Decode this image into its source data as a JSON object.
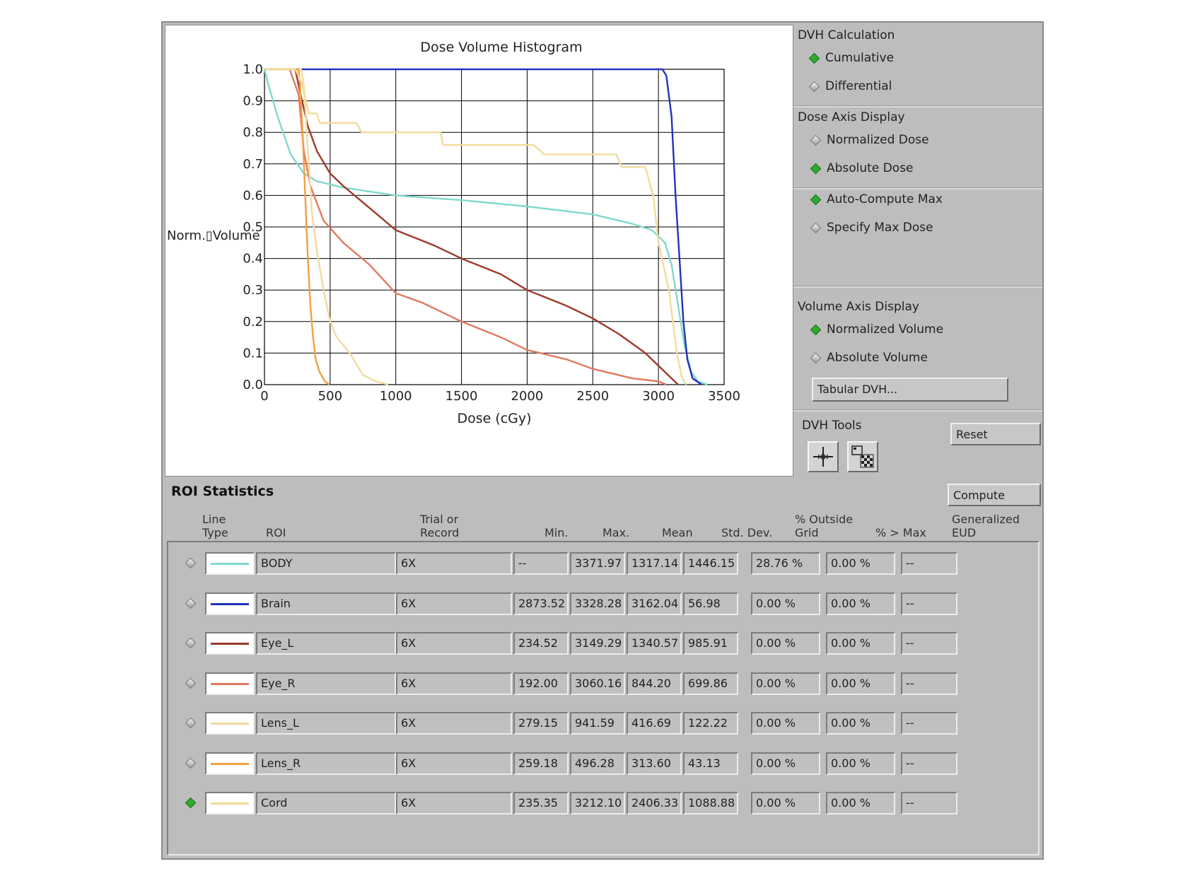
{
  "chart_data": {
    "type": "line",
    "title": "Dose Volume Histogram",
    "xlabel": "Dose (cGy)",
    "ylabel": "Norm.▯Volume",
    "xlim": [
      0,
      3500
    ],
    "ylim": [
      0,
      1.0
    ],
    "xticks": [
      "0",
      "500",
      "1000",
      "1500",
      "2000",
      "2500",
      "3000",
      "3500"
    ],
    "yticks": [
      "0.0",
      "0.1",
      "0.2",
      "0.3",
      "0.4",
      "0.5",
      "0.6",
      "0.7",
      "0.8",
      "0.9",
      "1.0"
    ],
    "grid": true,
    "series": [
      {
        "name": "BODY",
        "color": "#7fd9cc",
        "points": [
          [
            0,
            1.0
          ],
          [
            30,
            0.95
          ],
          [
            100,
            0.85
          ],
          [
            200,
            0.73
          ],
          [
            300,
            0.67
          ],
          [
            400,
            0.645
          ],
          [
            600,
            0.625
          ],
          [
            1000,
            0.6
          ],
          [
            1500,
            0.585
          ],
          [
            2000,
            0.565
          ],
          [
            2500,
            0.54
          ],
          [
            2800,
            0.51
          ],
          [
            2950,
            0.49
          ],
          [
            3050,
            0.45
          ],
          [
            3100,
            0.38
          ],
          [
            3150,
            0.25
          ],
          [
            3200,
            0.12
          ],
          [
            3250,
            0.04
          ],
          [
            3300,
            0.01
          ],
          [
            3372,
            0.0
          ]
        ]
      },
      {
        "name": "Brain",
        "color": "#2233bb",
        "points": [
          [
            0,
            1.0
          ],
          [
            2873,
            1.0
          ],
          [
            3030,
            1.0
          ],
          [
            3060,
            0.98
          ],
          [
            3100,
            0.85
          ],
          [
            3130,
            0.6
          ],
          [
            3160,
            0.4
          ],
          [
            3190,
            0.2
          ],
          [
            3220,
            0.08
          ],
          [
            3260,
            0.02
          ],
          [
            3328,
            0.0
          ]
        ]
      },
      {
        "name": "Eye_L",
        "color": "#9b3b2b",
        "points": [
          [
            0,
            1.0
          ],
          [
            234,
            1.0
          ],
          [
            270,
            0.93
          ],
          [
            330,
            0.82
          ],
          [
            400,
            0.74
          ],
          [
            500,
            0.67
          ],
          [
            600,
            0.63
          ],
          [
            800,
            0.56
          ],
          [
            1000,
            0.49
          ],
          [
            1300,
            0.44
          ],
          [
            1500,
            0.4
          ],
          [
            1800,
            0.35
          ],
          [
            2000,
            0.3
          ],
          [
            2300,
            0.25
          ],
          [
            2500,
            0.21
          ],
          [
            2700,
            0.16
          ],
          [
            2900,
            0.1
          ],
          [
            3000,
            0.06
          ],
          [
            3100,
            0.02
          ],
          [
            3149,
            0.0
          ]
        ]
      },
      {
        "name": "Eye_R",
        "color": "#e07a5f",
        "points": [
          [
            0,
            1.0
          ],
          [
            192,
            1.0
          ],
          [
            260,
            0.92
          ],
          [
            300,
            0.74
          ],
          [
            350,
            0.63
          ],
          [
            450,
            0.52
          ],
          [
            600,
            0.45
          ],
          [
            800,
            0.38
          ],
          [
            1000,
            0.29
          ],
          [
            1200,
            0.26
          ],
          [
            1500,
            0.2
          ],
          [
            1800,
            0.15
          ],
          [
            2000,
            0.11
          ],
          [
            2300,
            0.08
          ],
          [
            2500,
            0.05
          ],
          [
            2800,
            0.02
          ],
          [
            3000,
            0.01
          ],
          [
            3060,
            0.0
          ]
        ]
      },
      {
        "name": "Lens_L",
        "color": "#f3d9a0",
        "points": [
          [
            0,
            1.0
          ],
          [
            279,
            1.0
          ],
          [
            300,
            0.95
          ],
          [
            330,
            0.75
          ],
          [
            360,
            0.55
          ],
          [
            400,
            0.42
          ],
          [
            450,
            0.3
          ],
          [
            500,
            0.2
          ],
          [
            550,
            0.15
          ],
          [
            650,
            0.1
          ],
          [
            750,
            0.03
          ],
          [
            850,
            0.01
          ],
          [
            942,
            0.0
          ]
        ]
      },
      {
        "name": "Lens_R",
        "color": "#f0a040",
        "points": [
          [
            0,
            1.0
          ],
          [
            259,
            1.0
          ],
          [
            270,
            0.96
          ],
          [
            290,
            0.8
          ],
          [
            310,
            0.6
          ],
          [
            330,
            0.4
          ],
          [
            350,
            0.25
          ],
          [
            370,
            0.15
          ],
          [
            390,
            0.08
          ],
          [
            420,
            0.04
          ],
          [
            460,
            0.01
          ],
          [
            496,
            0.0
          ]
        ]
      },
      {
        "name": "Cord",
        "color": "#f0dc9c",
        "points": [
          [
            0,
            1.0
          ],
          [
            235,
            1.0
          ],
          [
            280,
            0.96
          ],
          [
            340,
            0.86
          ],
          [
            400,
            0.86
          ],
          [
            420,
            0.83
          ],
          [
            700,
            0.83
          ],
          [
            740,
            0.8
          ],
          [
            1340,
            0.8
          ],
          [
            1360,
            0.76
          ],
          [
            2050,
            0.76
          ],
          [
            2130,
            0.73
          ],
          [
            2680,
            0.73
          ],
          [
            2720,
            0.69
          ],
          [
            2900,
            0.69
          ],
          [
            2960,
            0.6
          ],
          [
            3000,
            0.45
          ],
          [
            3080,
            0.3
          ],
          [
            3140,
            0.1
          ],
          [
            3180,
            0.02
          ],
          [
            3212,
            0.0
          ]
        ]
      }
    ]
  },
  "dvh_calculation": {
    "title": "DVH Calculation",
    "options": [
      {
        "label": "Cumulative",
        "selected": true
      },
      {
        "label": "Differential",
        "selected": false
      }
    ]
  },
  "dose_axis": {
    "title": "Dose Axis Display",
    "options": [
      {
        "label": "Normalized Dose",
        "selected": false
      },
      {
        "label": "Absolute Dose",
        "selected": true
      }
    ]
  },
  "max_dose": {
    "options": [
      {
        "label": "Auto-Compute Max",
        "selected": true
      },
      {
        "label": "Specify Max Dose",
        "selected": false
      }
    ]
  },
  "volume_axis": {
    "title": "Volume Axis Display",
    "options": [
      {
        "label": "Normalized Volume",
        "selected": true
      },
      {
        "label": "Absolute Volume",
        "selected": false
      }
    ],
    "tabular_button": "Tabular DVH..."
  },
  "dvh_tools": {
    "title": "DVH Tools",
    "reset_button": "Reset"
  },
  "roi_statistics": {
    "title": "ROI Statistics",
    "compute_button": "Compute",
    "headers": {
      "line_type_1": "Line",
      "line_type_2": "Type",
      "roi": "ROI",
      "trial_1": "Trial or",
      "trial_2": "Record",
      "min": "Min.",
      "max": "Max.",
      "mean": "Mean",
      "std": "Std. Dev.",
      "outside_1": "% Outside",
      "outside_2": "Grid",
      "pct_max": "% > Max",
      "eud_1": "Generalized",
      "eud_2": "EUD"
    },
    "rows": [
      {
        "selected": false,
        "color": "#7fd9cc",
        "roi": "BODY",
        "trial": "6X",
        "min": "--",
        "max": "3371.97",
        "mean": "1317.14",
        "std": "1446.15",
        "outside": "28.76 %",
        "pct_max": "0.00 %",
        "eud": "--"
      },
      {
        "selected": false,
        "color": "#2233bb",
        "roi": "Brain",
        "trial": "6X",
        "min": "2873.52",
        "max": "3328.28",
        "mean": "3162.04",
        "std": "56.98",
        "outside": "0.00 %",
        "pct_max": "0.00 %",
        "eud": "--"
      },
      {
        "selected": false,
        "color": "#9b3b2b",
        "roi": "Eye_L",
        "trial": "6X",
        "min": "234.52",
        "max": "3149.29",
        "mean": "1340.57",
        "std": "985.91",
        "outside": "0.00 %",
        "pct_max": "0.00 %",
        "eud": "--"
      },
      {
        "selected": false,
        "color": "#e07a5f",
        "roi": "Eye_R",
        "trial": "6X",
        "min": "192.00",
        "max": "3060.16",
        "mean": "844.20",
        "std": "699.86",
        "outside": "0.00 %",
        "pct_max": "0.00 %",
        "eud": "--"
      },
      {
        "selected": false,
        "color": "#f3d9a0",
        "roi": "Lens_L",
        "trial": "6X",
        "min": "279.15",
        "max": "941.59",
        "mean": "416.69",
        "std": "122.22",
        "outside": "0.00 %",
        "pct_max": "0.00 %",
        "eud": "--"
      },
      {
        "selected": false,
        "color": "#f0a040",
        "roi": "Lens_R",
        "trial": "6X",
        "min": "259.18",
        "max": "496.28",
        "mean": "313.60",
        "std": "43.13",
        "outside": "0.00 %",
        "pct_max": "0.00 %",
        "eud": "--"
      },
      {
        "selected": true,
        "color": "#f0dc9c",
        "roi": "Cord",
        "trial": "6X",
        "min": "235.35",
        "max": "3212.10",
        "mean": "2406.33",
        "std": "1088.88",
        "outside": "0.00 %",
        "pct_max": "0.00 %",
        "eud": "--"
      }
    ]
  }
}
